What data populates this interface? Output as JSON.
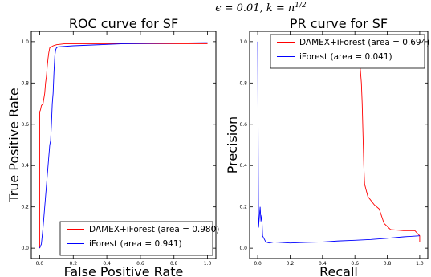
{
  "figure": {
    "suptitle": "ϵ = 0.01, k = n^1/2"
  },
  "chart_data": [
    {
      "type": "line",
      "title": "ROC curve for SF",
      "xlabel": "False Positive Rate",
      "ylabel": "True Positive Rate",
      "xlim": [
        -0.05,
        1.05
      ],
      "ylim": [
        -0.05,
        1.05
      ],
      "xticks": [
        "0.0",
        "0.2",
        "0.4",
        "0.6",
        "0.8",
        "1.0"
      ],
      "yticks": [
        "0.0",
        "0.2",
        "0.4",
        "0.6",
        "0.8",
        "1.0"
      ],
      "legend_position": "lower-right",
      "series": [
        {
          "name": "DAMEX+iForest (area = 0.980)",
          "color": "#ff0000",
          "points": [
            [
              0,
              0
            ],
            [
              0,
              0.66
            ],
            [
              0.005,
              0.67
            ],
            [
              0.01,
              0.69
            ],
            [
              0.02,
              0.7
            ],
            [
              0.03,
              0.75
            ],
            [
              0.035,
              0.8
            ],
            [
              0.04,
              0.83
            ],
            [
              0.045,
              0.88
            ],
            [
              0.05,
              0.92
            ],
            [
              0.055,
              0.95
            ],
            [
              0.06,
              0.97
            ],
            [
              0.07,
              0.975
            ],
            [
              0.08,
              0.98
            ],
            [
              0.1,
              0.985
            ],
            [
              0.15,
              0.99
            ],
            [
              1,
              0.99
            ]
          ]
        },
        {
          "name": "iForest (area = 0.941)",
          "color": "#0000ff",
          "points": [
            [
              0,
              0
            ],
            [
              0.01,
              0.02
            ],
            [
              0.02,
              0.1
            ],
            [
              0.03,
              0.2
            ],
            [
              0.04,
              0.3
            ],
            [
              0.05,
              0.4
            ],
            [
              0.06,
              0.5
            ],
            [
              0.065,
              0.52
            ],
            [
              0.07,
              0.6
            ],
            [
              0.075,
              0.7
            ],
            [
              0.08,
              0.75
            ],
            [
              0.085,
              0.85
            ],
            [
              0.09,
              0.93
            ],
            [
              0.095,
              0.96
            ],
            [
              0.1,
              0.97
            ],
            [
              0.11,
              0.975
            ],
            [
              0.2,
              0.98
            ],
            [
              0.5,
              0.99
            ],
            [
              1,
              0.995
            ]
          ]
        }
      ]
    },
    {
      "type": "line",
      "title": "PR curve for SF",
      "xlabel": "Recall",
      "ylabel": "Precision",
      "xlim": [
        -0.05,
        1.05
      ],
      "ylim": [
        -0.05,
        1.05
      ],
      "xticks": [
        "0.0",
        "0.2",
        "0.4",
        "0.6",
        "0.8",
        "1.0"
      ],
      "yticks": [
        "0.0",
        "0.2",
        "0.4",
        "0.6",
        "0.8",
        "1.0"
      ],
      "legend_position": "upper-right",
      "series": [
        {
          "name": "DAMEX+iForest (area = 0.694)",
          "color": "#ff0000",
          "points": [
            [
              0.62,
              0.94
            ],
            [
              0.63,
              0.9
            ],
            [
              0.64,
              0.8
            ],
            [
              0.645,
              0.7
            ],
            [
              0.65,
              0.55
            ],
            [
              0.655,
              0.4
            ],
            [
              0.66,
              0.31
            ],
            [
              0.67,
              0.28
            ],
            [
              0.68,
              0.25
            ],
            [
              0.7,
              0.23
            ],
            [
              0.72,
              0.21
            ],
            [
              0.75,
              0.19
            ],
            [
              0.78,
              0.12
            ],
            [
              0.82,
              0.09
            ],
            [
              0.9,
              0.085
            ],
            [
              0.97,
              0.085
            ],
            [
              1.0,
              0.06
            ],
            [
              1.0,
              0.03
            ]
          ]
        },
        {
          "name": "iForest (area = 0.041)",
          "color": "#0000ff",
          "points": [
            [
              0,
              1.0
            ],
            [
              0.005,
              0.1
            ],
            [
              0.01,
              0.15
            ],
            [
              0.015,
              0.2
            ],
            [
              0.02,
              0.13
            ],
            [
              0.025,
              0.16
            ],
            [
              0.03,
              0.06
            ],
            [
              0.05,
              0.03
            ],
            [
              0.07,
              0.025
            ],
            [
              0.1,
              0.03
            ],
            [
              0.2,
              0.025
            ],
            [
              0.3,
              0.028
            ],
            [
              0.4,
              0.03
            ],
            [
              0.5,
              0.035
            ],
            [
              0.6,
              0.038
            ],
            [
              0.7,
              0.042
            ],
            [
              0.8,
              0.048
            ],
            [
              0.9,
              0.055
            ],
            [
              1.0,
              0.06
            ]
          ]
        }
      ]
    }
  ]
}
